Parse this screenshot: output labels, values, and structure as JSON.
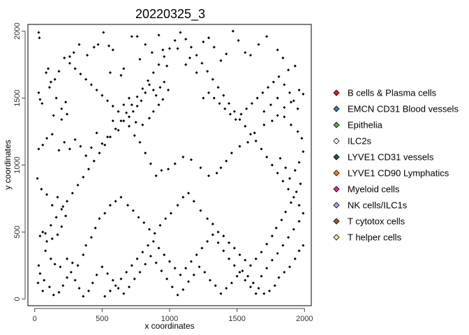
{
  "chart_data": {
    "type": "scatter",
    "title": "20220325_3",
    "xlabel": "x coordinates",
    "ylabel": "y coordinates",
    "xlim": [
      -50,
      2050
    ],
    "ylim": [
      -50,
      2050
    ],
    "xticks": [
      0,
      500,
      1000,
      1500,
      2000
    ],
    "yticks": [
      0,
      500,
      1000,
      1500,
      2000
    ],
    "grid": false,
    "legend_position": "right",
    "point_color": "#000000",
    "legend": [
      {
        "label": "B cells & Plasma cells",
        "color": "#e41a1c"
      },
      {
        "label": "EMCN CD31 Blood vessels",
        "color": "#377eb8"
      },
      {
        "label": "Epithelia",
        "color": "#4daf4a"
      },
      {
        "label": "ILC2s",
        "color": "#ffffff"
      },
      {
        "label": "LYVE1 CD31 vessels",
        "color": "#2f4f4f"
      },
      {
        "label": "LYVE1 CD90 Lymphatics",
        "color": "#ff7f00"
      },
      {
        "label": "Myeloid cells",
        "color": "#e7298a"
      },
      {
        "label": "NK cells/ILC1s",
        "color": "#a6a6e0"
      },
      {
        "label": "T cytotox cells",
        "color": "#a65628"
      },
      {
        "label": "T helper cells",
        "color": "#f0e68c"
      }
    ],
    "points": [
      [
        30,
        1990
      ],
      [
        35,
        1950
      ],
      [
        100,
        1720
      ],
      [
        85,
        1690
      ],
      [
        110,
        1580
      ],
      [
        30,
        1540
      ],
      [
        40,
        1490
      ],
      [
        55,
        1460
      ],
      [
        140,
        1370
      ],
      [
        200,
        1340
      ],
      [
        230,
        1470
      ],
      [
        260,
        1810
      ],
      [
        290,
        1840
      ],
      [
        330,
        1900
      ],
      [
        390,
        1820
      ],
      [
        440,
        1880
      ],
      [
        470,
        1900
      ],
      [
        510,
        1990
      ],
      [
        550,
        1890
      ],
      [
        560,
        1690
      ],
      [
        580,
        1860
      ],
      [
        640,
        1670
      ],
      [
        660,
        1720
      ],
      [
        720,
        1960
      ],
      [
        760,
        1960
      ],
      [
        780,
        1790
      ],
      [
        820,
        1900
      ],
      [
        870,
        1840
      ],
      [
        920,
        1970
      ],
      [
        950,
        1860
      ],
      [
        980,
        1740
      ],
      [
        1060,
        1870
      ],
      [
        1120,
        1750
      ],
      [
        1150,
        1800
      ],
      [
        1200,
        1690
      ],
      [
        1250,
        1920
      ],
      [
        1290,
        1950
      ],
      [
        1330,
        1880
      ],
      [
        1380,
        1780
      ],
      [
        1420,
        1830
      ],
      [
        1470,
        2000
      ],
      [
        1510,
        1930
      ],
      [
        1560,
        1840
      ],
      [
        1600,
        1820
      ],
      [
        1660,
        1900
      ],
      [
        1720,
        1960
      ],
      [
        1800,
        1860
      ],
      [
        1840,
        1800
      ],
      [
        1880,
        1710
      ],
      [
        1930,
        1740
      ],
      [
        1960,
        1560
      ],
      [
        1990,
        1530
      ],
      [
        1900,
        1470
      ],
      [
        1850,
        1430
      ],
      [
        1800,
        1370
      ],
      [
        1760,
        1330
      ],
      [
        1700,
        1300
      ],
      [
        1630,
        1240
      ],
      [
        1580,
        1170
      ],
      [
        1520,
        1140
      ],
      [
        1460,
        1090
      ],
      [
        1420,
        1030
      ],
      [
        1380,
        980
      ],
      [
        1350,
        940
      ],
      [
        1290,
        920
      ],
      [
        1230,
        980
      ],
      [
        1160,
        1040
      ],
      [
        1100,
        1060
      ],
      [
        1040,
        1010
      ],
      [
        990,
        970
      ],
      [
        940,
        960
      ],
      [
        900,
        920
      ],
      [
        860,
        1010
      ],
      [
        820,
        1090
      ],
      [
        780,
        1170
      ],
      [
        740,
        1220
      ],
      [
        700,
        1290
      ],
      [
        660,
        1330
      ],
      [
        620,
        1260
      ],
      [
        580,
        1330
      ],
      [
        540,
        1210
      ],
      [
        500,
        1160
      ],
      [
        460,
        1240
      ],
      [
        420,
        1130
      ],
      [
        380,
        1070
      ],
      [
        340,
        1140
      ],
      [
        300,
        1190
      ],
      [
        260,
        1120
      ],
      [
        220,
        1170
      ],
      [
        180,
        1110
      ],
      [
        130,
        1230
      ],
      [
        90,
        1200
      ],
      [
        60,
        1150
      ],
      [
        30,
        1120
      ],
      [
        20,
        900
      ],
      [
        50,
        820
      ],
      [
        90,
        780
      ],
      [
        130,
        700
      ],
      [
        170,
        760
      ],
      [
        210,
        690
      ],
      [
        230,
        620
      ],
      [
        200,
        540
      ],
      [
        170,
        480
      ],
      [
        130,
        450
      ],
      [
        90,
        430
      ],
      [
        60,
        500
      ],
      [
        40,
        470
      ],
      [
        80,
        360
      ],
      [
        120,
        300
      ],
      [
        150,
        260
      ],
      [
        190,
        240
      ],
      [
        240,
        300
      ],
      [
        280,
        270
      ],
      [
        320,
        250
      ],
      [
        360,
        330
      ],
      [
        380,
        400
      ],
      [
        420,
        460
      ],
      [
        450,
        530
      ],
      [
        480,
        600
      ],
      [
        520,
        640
      ],
      [
        560,
        700
      ],
      [
        600,
        730
      ],
      [
        640,
        760
      ],
      [
        690,
        700
      ],
      [
        730,
        660
      ],
      [
        770,
        610
      ],
      [
        810,
        570
      ],
      [
        850,
        520
      ],
      [
        890,
        490
      ],
      [
        930,
        550
      ],
      [
        970,
        600
      ],
      [
        1010,
        640
      ],
      [
        1060,
        700
      ],
      [
        1100,
        760
      ],
      [
        1140,
        790
      ],
      [
        1180,
        730
      ],
      [
        1230,
        660
      ],
      [
        1280,
        600
      ],
      [
        1320,
        560
      ],
      [
        1360,
        500
      ],
      [
        1400,
        470
      ],
      [
        1440,
        420
      ],
      [
        1480,
        380
      ],
      [
        1520,
        330
      ],
      [
        1560,
        290
      ],
      [
        1600,
        250
      ],
      [
        1640,
        300
      ],
      [
        1680,
        350
      ],
      [
        1720,
        410
      ],
      [
        1760,
        470
      ],
      [
        1790,
        530
      ],
      [
        1830,
        590
      ],
      [
        1860,
        650
      ],
      [
        1900,
        720
      ],
      [
        1940,
        800
      ],
      [
        1970,
        860
      ],
      [
        1990,
        400
      ],
      [
        1960,
        360
      ],
      [
        1930,
        300
      ],
      [
        1890,
        240
      ],
      [
        1850,
        200
      ],
      [
        1810,
        160
      ],
      [
        1780,
        100
      ],
      [
        1740,
        60
      ],
      [
        1700,
        40
      ],
      [
        1660,
        80
      ],
      [
        1620,
        120
      ],
      [
        1580,
        170
      ],
      [
        1540,
        210
      ],
      [
        1500,
        170
      ],
      [
        1460,
        120
      ],
      [
        1420,
        80
      ],
      [
        1380,
        40
      ],
      [
        1340,
        100
      ],
      [
        1300,
        140
      ],
      [
        1260,
        200
      ],
      [
        1220,
        240
      ],
      [
        1180,
        180
      ],
      [
        1140,
        130
      ],
      [
        1100,
        70
      ],
      [
        1060,
        30
      ],
      [
        1020,
        90
      ],
      [
        980,
        150
      ],
      [
        940,
        210
      ],
      [
        900,
        270
      ],
      [
        860,
        320
      ],
      [
        820,
        260
      ],
      [
        780,
        200
      ],
      [
        740,
        150
      ],
      [
        700,
        90
      ],
      [
        660,
        40
      ],
      [
        620,
        80
      ],
      [
        580,
        140
      ],
      [
        540,
        190
      ],
      [
        500,
        240
      ],
      [
        460,
        180
      ],
      [
        430,
        120
      ],
      [
        400,
        60
      ],
      [
        360,
        20
      ],
      [
        330,
        80
      ],
      [
        300,
        140
      ],
      [
        270,
        200
      ],
      [
        240,
        160
      ],
      [
        210,
        100
      ],
      [
        180,
        50
      ],
      [
        140,
        30
      ],
      [
        110,
        90
      ],
      [
        70,
        140
      ],
      [
        40,
        190
      ],
      [
        30,
        250
      ],
      [
        25,
        120
      ],
      [
        60,
        60
      ],
      [
        520,
        20
      ],
      [
        560,
        60
      ],
      [
        600,
        100
      ],
      [
        640,
        150
      ],
      [
        680,
        200
      ],
      [
        720,
        250
      ],
      [
        760,
        300
      ],
      [
        800,
        350
      ],
      [
        840,
        400
      ],
      [
        880,
        430
      ],
      [
        920,
        380
      ],
      [
        960,
        330
      ],
      [
        1000,
        280
      ],
      [
        1040,
        230
      ],
      [
        1080,
        180
      ],
      [
        1120,
        230
      ],
      [
        1160,
        280
      ],
      [
        1200,
        330
      ],
      [
        1240,
        380
      ],
      [
        1280,
        430
      ],
      [
        1320,
        480
      ],
      [
        1360,
        420
      ],
      [
        1400,
        360
      ],
      [
        1440,
        300
      ],
      [
        1480,
        250
      ],
      [
        1520,
        200
      ],
      [
        1560,
        140
      ],
      [
        1600,
        90
      ],
      [
        1640,
        40
      ],
      [
        1680,
        170
      ],
      [
        1720,
        230
      ],
      [
        1760,
        290
      ],
      [
        1800,
        340
      ],
      [
        1840,
        400
      ],
      [
        1880,
        460
      ],
      [
        1920,
        520
      ],
      [
        1960,
        580
      ],
      [
        1990,
        640
      ],
      [
        1960,
        700
      ],
      [
        1920,
        760
      ],
      [
        1880,
        820
      ],
      [
        1840,
        880
      ],
      [
        1800,
        940
      ],
      [
        1760,
        1000
      ],
      [
        1720,
        1060
      ],
      [
        1680,
        1120
      ],
      [
        1640,
        1180
      ],
      [
        1600,
        1230
      ],
      [
        1560,
        1290
      ],
      [
        1520,
        1340
      ],
      [
        1480,
        1400
      ],
      [
        1440,
        1460
      ],
      [
        1400,
        1520
      ],
      [
        1360,
        1580
      ],
      [
        1320,
        1640
      ],
      [
        1280,
        1700
      ],
      [
        1240,
        1760
      ],
      [
        1200,
        1820
      ],
      [
        1160,
        1880
      ],
      [
        1120,
        1940
      ],
      [
        1080,
        1990
      ],
      [
        1040,
        1930
      ],
      [
        1000,
        1870
      ],
      [
        960,
        1810
      ],
      [
        920,
        1750
      ],
      [
        880,
        1690
      ],
      [
        840,
        1630
      ],
      [
        800,
        1570
      ],
      [
        760,
        1510
      ],
      [
        720,
        1450
      ],
      [
        680,
        1390
      ],
      [
        640,
        1330
      ],
      [
        600,
        1270
      ],
      [
        560,
        1210
      ],
      [
        520,
        1150
      ],
      [
        480,
        1090
      ],
      [
        440,
        1030
      ],
      [
        400,
        970
      ],
      [
        360,
        910
      ],
      [
        320,
        850
      ],
      [
        280,
        790
      ],
      [
        240,
        730
      ],
      [
        200,
        670
      ],
      [
        160,
        610
      ],
      [
        120,
        550
      ],
      [
        80,
        490
      ],
      [
        850,
        1600
      ],
      [
        880,
        1560
      ],
      [
        900,
        1520
      ],
      [
        930,
        1580
      ],
      [
        960,
        1620
      ],
      [
        990,
        1560
      ],
      [
        820,
        1540
      ],
      [
        790,
        1480
      ],
      [
        760,
        1440
      ],
      [
        730,
        1400
      ],
      [
        700,
        1360
      ],
      [
        750,
        1320
      ],
      [
        800,
        1300
      ],
      [
        850,
        1350
      ],
      [
        880,
        1400
      ],
      [
        920,
        1450
      ],
      [
        950,
        1490
      ],
      [
        700,
        1500
      ],
      [
        660,
        1450
      ],
      [
        620,
        1400
      ],
      [
        580,
        1440
      ],
      [
        540,
        1480
      ],
      [
        500,
        1520
      ],
      [
        460,
        1560
      ],
      [
        420,
        1600
      ],
      [
        380,
        1640
      ],
      [
        340,
        1680
      ],
      [
        300,
        1720
      ],
      [
        260,
        1760
      ],
      [
        220,
        1800
      ],
      [
        180,
        1700
      ],
      [
        150,
        1640
      ],
      [
        120,
        1620
      ],
      [
        160,
        1500
      ],
      [
        200,
        1420
      ],
      [
        240,
        1380
      ],
      [
        1250,
        1500
      ],
      [
        1290,
        1540
      ],
      [
        1330,
        1500
      ],
      [
        1370,
        1460
      ],
      [
        1410,
        1420
      ],
      [
        1450,
        1380
      ],
      [
        1490,
        1340
      ],
      [
        1530,
        1380
      ],
      [
        1570,
        1420
      ],
      [
        1610,
        1460
      ],
      [
        1650,
        1500
      ],
      [
        1690,
        1540
      ],
      [
        1730,
        1580
      ],
      [
        1770,
        1620
      ],
      [
        1810,
        1660
      ],
      [
        1850,
        1600
      ],
      [
        1890,
        1540
      ],
      [
        1920,
        1480
      ],
      [
        1950,
        1420
      ],
      [
        1700,
        1400
      ],
      [
        1750,
        1450
      ],
      [
        1800,
        1500
      ],
      [
        1850,
        1360
      ],
      [
        1900,
        1300
      ],
      [
        1950,
        1250
      ],
      [
        1980,
        1200
      ],
      [
        1990,
        1100
      ],
      [
        1960,
        1020
      ],
      [
        1930,
        960
      ],
      [
        1890,
        900
      ],
      [
        1860,
        980
      ],
      [
        1820,
        1050
      ]
    ]
  }
}
